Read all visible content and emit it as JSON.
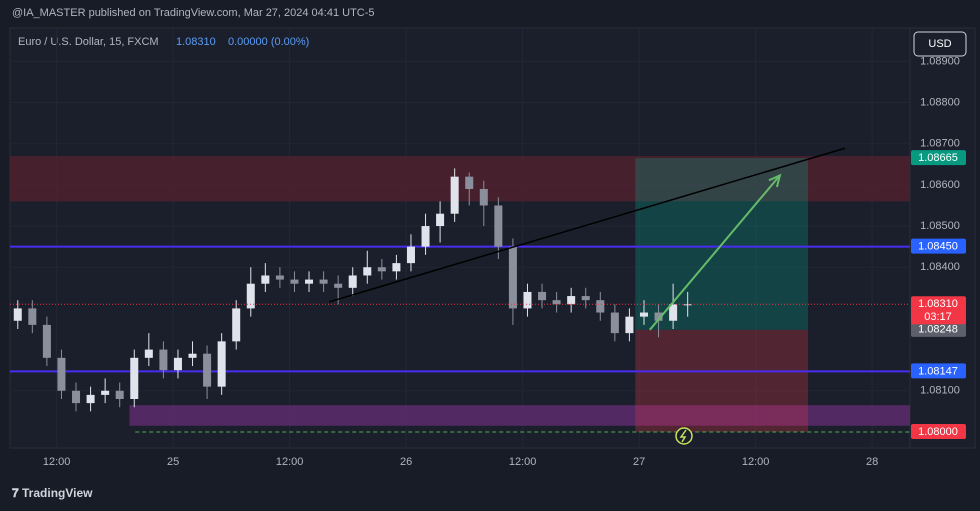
{
  "header": "@IA_MASTER published on TradingView.com, Mar 27, 2024 04:41 UTC-5",
  "brand": "TradingView",
  "chart_data": {
    "type": "candlestick",
    "title": "Euro / U.S. Dollar, 15, FXCM",
    "last": {
      "value": 1.0831,
      "label": "1.08310"
    },
    "change": "0.00000 (0.00%)",
    "currency": "USD",
    "countdown": "03:17",
    "up_color": "#e0e3eb",
    "down_color": "#8a8f9b",
    "x": [
      8,
      9.5,
      11,
      12.5,
      14,
      15.5,
      17,
      18.5,
      20,
      21.5,
      23,
      24.5,
      26,
      27.5,
      29,
      30.5,
      32,
      33.5,
      35,
      36.5,
      38,
      39.5,
      41,
      42.5,
      44,
      45.5,
      47,
      48.5,
      50,
      51.5,
      53,
      54.5,
      56,
      57.5,
      59,
      60.5,
      62,
      63.5,
      65,
      66.5,
      68,
      69.5,
      71,
      72.5,
      74,
      75.5,
      77
    ],
    "open": [
      1.0827,
      1.083,
      1.0826,
      1.0818,
      1.081,
      1.0807,
      1.0809,
      1.081,
      1.0808,
      1.0818,
      1.082,
      1.0815,
      1.0818,
      1.0819,
      1.0811,
      1.0822,
      1.083,
      1.0836,
      1.0838,
      1.0837,
      1.0836,
      1.0837,
      1.0836,
      1.0835,
      1.0838,
      1.084,
      1.0839,
      1.0841,
      1.0845,
      1.085,
      1.0853,
      1.0862,
      1.0859,
      1.0855,
      1.0845,
      1.083,
      1.0834,
      1.0832,
      1.0831,
      1.0833,
      1.0832,
      1.0829,
      1.0824,
      1.0828,
      1.0829,
      1.0827,
      1.0831
    ],
    "high": [
      1.0832,
      1.0832,
      1.0828,
      1.082,
      1.0812,
      1.0811,
      1.0813,
      1.0812,
      1.082,
      1.0824,
      1.0822,
      1.082,
      1.0822,
      1.0821,
      1.0824,
      1.0832,
      1.084,
      1.0841,
      1.084,
      1.0839,
      1.0839,
      1.0839,
      1.0838,
      1.084,
      1.0844,
      1.0842,
      1.0843,
      1.0848,
      1.0853,
      1.0856,
      1.0864,
      1.0863,
      1.0861,
      1.0857,
      1.0847,
      1.0836,
      1.0836,
      1.0834,
      1.0835,
      1.0835,
      1.0834,
      1.0831,
      1.083,
      1.0832,
      1.0831,
      1.0836,
      1.0834
    ],
    "low": [
      1.0825,
      1.0824,
      1.0816,
      1.0808,
      1.0805,
      1.0805,
      1.0807,
      1.0806,
      1.0806,
      1.0816,
      1.0813,
      1.0813,
      1.0816,
      1.0808,
      1.0809,
      1.082,
      1.0828,
      1.0834,
      1.0835,
      1.0834,
      1.0834,
      1.0834,
      1.0831,
      1.0833,
      1.0836,
      1.0837,
      1.0837,
      1.0839,
      1.0843,
      1.0846,
      1.0851,
      1.0855,
      1.085,
      1.0842,
      1.0826,
      1.0828,
      1.083,
      1.0829,
      1.0829,
      1.083,
      1.0827,
      1.0822,
      1.0822,
      1.0826,
      1.0823,
      1.0825,
      1.0828
    ],
    "close": [
      1.083,
      1.0826,
      1.0818,
      1.081,
      1.0807,
      1.0809,
      1.081,
      1.0808,
      1.0818,
      1.082,
      1.0815,
      1.0818,
      1.0819,
      1.0811,
      1.0822,
      1.083,
      1.0836,
      1.0838,
      1.0837,
      1.0836,
      1.0837,
      1.0836,
      1.0835,
      1.0838,
      1.084,
      1.0839,
      1.0841,
      1.0845,
      1.085,
      1.0853,
      1.0862,
      1.0859,
      1.0855,
      1.0845,
      1.083,
      1.0834,
      1.0832,
      1.0831,
      1.0833,
      1.0832,
      1.0829,
      1.0824,
      1.0828,
      1.0829,
      1.0827,
      1.0831,
      1.0831
    ],
    "xlim": [
      7.2,
      99.9
    ],
    "ylim": [
      1.07961,
      1.08981
    ],
    "yticks": [
      {
        "value": 1.081,
        "label": "1.08100"
      },
      {
        "value": 1.084,
        "label": "1.08400"
      },
      {
        "value": 1.085,
        "label": "1.08500"
      },
      {
        "value": 1.086,
        "label": "1.08600"
      },
      {
        "value": 1.087,
        "label": "1.08700"
      },
      {
        "value": 1.088,
        "label": "1.08800"
      },
      {
        "value": 1.089,
        "label": "1.08900"
      }
    ],
    "xticks": [
      {
        "value": 12,
        "label": "12:00"
      },
      {
        "value": 24,
        "label": "25"
      },
      {
        "value": 36,
        "label": "12:00"
      },
      {
        "value": 48,
        "label": "26"
      },
      {
        "value": 60,
        "label": "12:00"
      },
      {
        "value": 72,
        "label": "27"
      },
      {
        "value": 84,
        "label": "12:00"
      },
      {
        "value": 96,
        "label": "28"
      }
    ],
    "zones": [
      {
        "top": 1.0867,
        "bottom": 1.0856,
        "x": [
          7.2,
          99.9
        ],
        "color": "#5a2130"
      },
      {
        "top": 1.08065,
        "bottom": 1.08015,
        "x": [
          19.5,
          99.9
        ],
        "color": "#6a2d7c"
      }
    ],
    "levels": [
      {
        "value": 1.0845,
        "label": "1.08450",
        "color": "#4a2cf0"
      },
      {
        "value": 1.08147,
        "label": "1.08147",
        "color": "#4a2cf0"
      }
    ],
    "position": {
      "entry": {
        "value": 1.08248,
        "label": "1.08248"
      },
      "target": {
        "value": 1.08665,
        "label": "1.08665"
      },
      "stop": {
        "value": 1.08,
        "label": "1.08000"
      },
      "x": [
        71.6,
        89.4
      ]
    },
    "trendline": {
      "x": [
        40.1,
        93.2
      ],
      "y": [
        1.08316,
        1.08689
      ]
    },
    "arrow": {
      "x": [
        73.1,
        86.5
      ],
      "y": [
        1.08248,
        1.08623
      ]
    }
  }
}
